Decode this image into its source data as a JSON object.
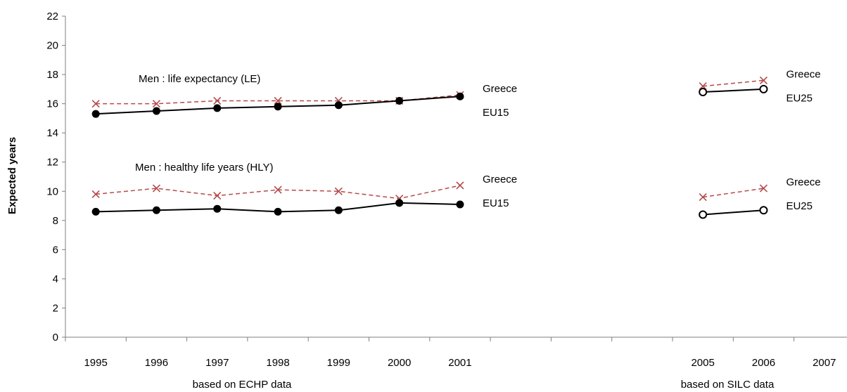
{
  "chart_data": {
    "type": "line",
    "ylabel": "Expected years",
    "ylim": [
      0,
      22
    ],
    "ytick_step": 2,
    "grid": false,
    "categories": [
      "1995",
      "1996",
      "1997",
      "1998",
      "1999",
      "2000",
      "2001",
      "",
      "",
      "",
      "2005",
      "2006",
      "2007"
    ],
    "section_labels": [
      "based on ECHP data",
      "based on SILC data"
    ],
    "annotations": [
      "Men :  life expectancy (LE)",
      "Men :  healthy life years (HLY)"
    ],
    "series": [
      {
        "name": "Greece",
        "group": "LE",
        "style": "dashed-cross",
        "color": "#b54a4a",
        "x": [
          "1995",
          "1996",
          "1997",
          "1998",
          "1999",
          "2000",
          "2001"
        ],
        "values": [
          16.0,
          16.0,
          16.2,
          16.2,
          16.2,
          16.2,
          16.6
        ]
      },
      {
        "name": "EU15",
        "group": "LE",
        "style": "solid-filled",
        "color": "#000000",
        "x": [
          "1995",
          "1996",
          "1997",
          "1998",
          "1999",
          "2000",
          "2001"
        ],
        "values": [
          15.3,
          15.5,
          15.7,
          15.8,
          15.9,
          16.2,
          16.5
        ]
      },
      {
        "name": "Greece",
        "group": "LE",
        "style": "dashed-cross",
        "color": "#b54a4a",
        "x": [
          "2005",
          "2006"
        ],
        "values": [
          17.2,
          17.6
        ]
      },
      {
        "name": "EU25",
        "group": "LE",
        "style": "solid-open",
        "color": "#000000",
        "x": [
          "2005",
          "2006"
        ],
        "values": [
          16.8,
          17.0
        ]
      },
      {
        "name": "Greece",
        "group": "HLY",
        "style": "dashed-cross",
        "color": "#b54a4a",
        "x": [
          "1995",
          "1996",
          "1997",
          "1998",
          "1999",
          "2000",
          "2001"
        ],
        "values": [
          9.8,
          10.2,
          9.7,
          10.1,
          10.0,
          9.5,
          10.4
        ]
      },
      {
        "name": "EU15",
        "group": "HLY",
        "style": "solid-filled",
        "color": "#000000",
        "x": [
          "1995",
          "1996",
          "1997",
          "1998",
          "1999",
          "2000",
          "2001"
        ],
        "values": [
          8.6,
          8.7,
          8.8,
          8.6,
          8.7,
          9.2,
          9.1
        ]
      },
      {
        "name": "Greece",
        "group": "HLY",
        "style": "dashed-cross",
        "color": "#b54a4a",
        "x": [
          "2005",
          "2006"
        ],
        "values": [
          9.6,
          10.2
        ]
      },
      {
        "name": "EU25",
        "group": "HLY",
        "style": "solid-open",
        "color": "#000000",
        "x": [
          "2005",
          "2006"
        ],
        "values": [
          8.4,
          8.7
        ]
      }
    ]
  }
}
